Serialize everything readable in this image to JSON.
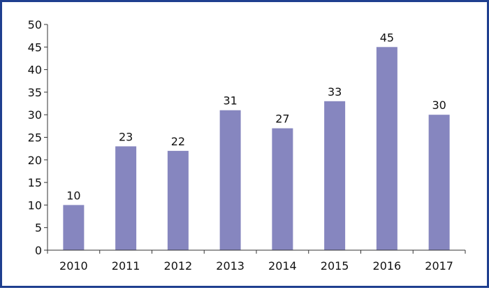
{
  "chart_data": {
    "type": "bar",
    "categories": [
      "2010",
      "2011",
      "2012",
      "2013",
      "2014",
      "2015",
      "2016",
      "2017"
    ],
    "values": [
      10,
      23,
      22,
      31,
      27,
      33,
      45,
      30
    ],
    "data_labels": [
      "10",
      "23",
      "22",
      "31",
      "27",
      "33",
      "45",
      "30"
    ],
    "title": "",
    "xlabel": "",
    "ylabel": "",
    "ylim": [
      0,
      50
    ],
    "yticks": [
      "0",
      "5",
      "10",
      "15",
      "20",
      "25",
      "30",
      "35",
      "40",
      "45",
      "50"
    ],
    "grid": false,
    "legend": "none",
    "colors": {
      "bar": "#8686bf",
      "axis": "#333333",
      "frame": "#1f3f8f"
    }
  }
}
